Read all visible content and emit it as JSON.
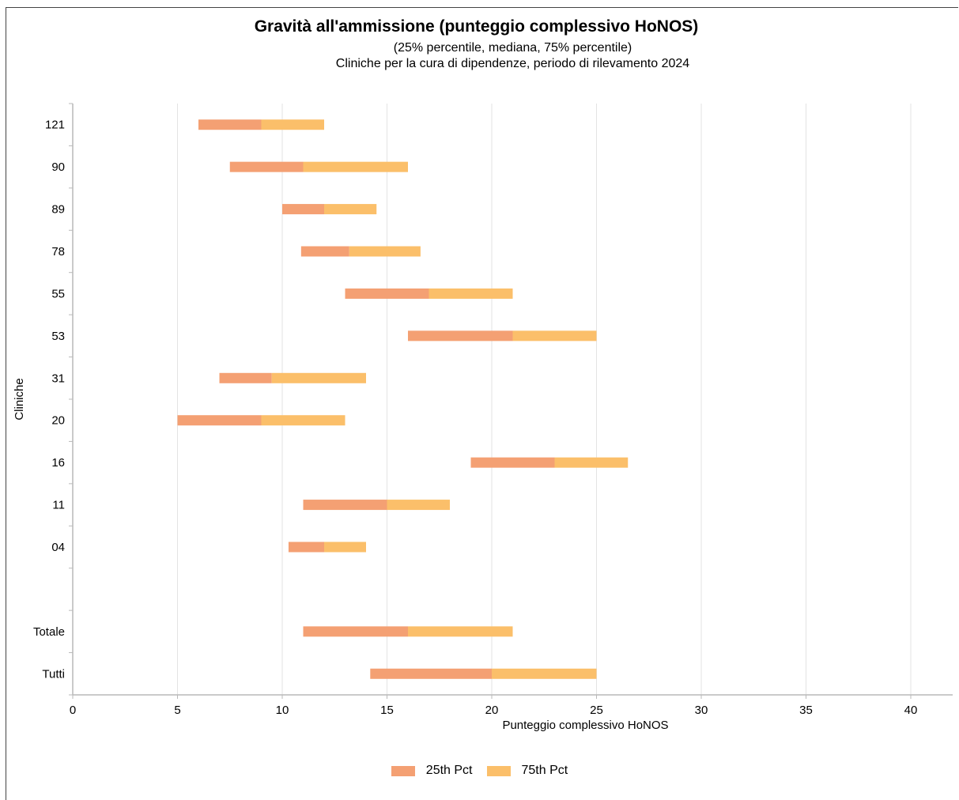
{
  "title": "Gravità all'ammissione (punteggio complessivo HoNOS)",
  "subtitle_line1": "(25% percentile, mediana, 75% percentile)",
  "subtitle_line2": "Cliniche per la cura di dipendenze, periodo di rilevamento 2024",
  "colors": {
    "p25": "#F4A073",
    "p75": "#FBBF6A",
    "grid": "#e3e3e3",
    "axis": "#b9b9b9"
  },
  "chart_data": {
    "type": "bar",
    "orientation": "horizontal-floating",
    "title": "Gravità all'ammissione (punteggio complessivo HoNOS)",
    "xlabel": "Punteggio complessivo HoNOS",
    "ylabel": "Cliniche",
    "xlim": [
      0,
      42
    ],
    "xticks": [
      0,
      5,
      10,
      15,
      20,
      25,
      30,
      35,
      40
    ],
    "grid": true,
    "legend_position": "bottom",
    "categories": [
      "121",
      "90",
      "89",
      "78",
      "55",
      "53",
      "31",
      "20",
      "16",
      "11",
      "04",
      "",
      "Totale",
      "Tutti"
    ],
    "series": [
      {
        "name": "25th Pct",
        "color": "#F4A073",
        "start": [
          6,
          7.5,
          10,
          10.9,
          13,
          16,
          7,
          5,
          19,
          11,
          10.3,
          null,
          11,
          14.2
        ],
        "end": [
          9,
          11,
          12,
          13.2,
          17,
          21,
          9.5,
          9,
          23,
          15,
          12,
          null,
          16,
          20
        ]
      },
      {
        "name": "75th Pct",
        "color": "#FBBF6A",
        "start": [
          9,
          11,
          12,
          13.2,
          17,
          21,
          9.5,
          9,
          23,
          15,
          12,
          null,
          16,
          20
        ],
        "end": [
          12,
          16,
          14.5,
          16.6,
          21,
          25,
          14,
          13,
          26.5,
          18,
          14,
          null,
          21,
          25
        ]
      }
    ]
  }
}
